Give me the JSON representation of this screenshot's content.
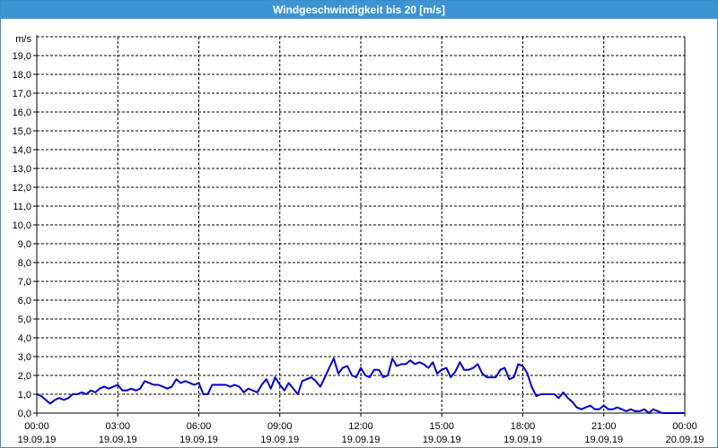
{
  "window": {
    "title": "Windgeschwindigkeit bis 20 [m/s]"
  },
  "chart_data": {
    "type": "line",
    "title": "Windgeschwindigkeit bis 20 [m/s]",
    "ylabel": "m/s",
    "ylim": [
      0,
      20
    ],
    "xlim_hours": [
      0,
      24
    ],
    "yticks": [
      "0,0",
      "1,0",
      "2,0",
      "3,0",
      "4,0",
      "5,0",
      "6,0",
      "7,0",
      "8,0",
      "9,0",
      "10,0",
      "11,0",
      "12,0",
      "13,0",
      "14,0",
      "15,0",
      "16,0",
      "17,0",
      "18,0",
      "19,0"
    ],
    "xticks": [
      {
        "time": "00:00",
        "date": "19.09.19"
      },
      {
        "time": "03:00",
        "date": "19.09.19"
      },
      {
        "time": "06:00",
        "date": "19.09.19"
      },
      {
        "time": "09:00",
        "date": "19.09.19"
      },
      {
        "time": "12:00",
        "date": "19.09.19"
      },
      {
        "time": "15:00",
        "date": "19.09.19"
      },
      {
        "time": "18:00",
        "date": "19.09.19"
      },
      {
        "time": "21:00",
        "date": "19.09.19"
      },
      {
        "time": "00:00",
        "date": "20.09.19"
      }
    ],
    "grid": true,
    "line_color": "#0000cc",
    "series": [
      {
        "x": [
          0,
          0.17,
          0.33,
          0.5,
          0.67,
          0.83,
          1.0,
          1.17,
          1.33,
          1.5,
          1.67,
          1.83,
          2.0,
          2.17,
          2.33,
          2.5,
          2.67,
          2.83,
          3.0,
          3.17,
          3.33,
          3.5,
          3.67,
          3.83,
          4.0,
          4.17,
          4.33,
          4.5,
          4.67,
          4.83,
          5.0,
          5.17,
          5.33,
          5.5,
          5.67,
          5.83,
          6.0,
          6.17,
          6.33,
          6.5,
          6.67,
          6.83,
          7.0,
          7.17,
          7.33,
          7.5,
          7.67,
          7.83,
          8.0,
          8.17,
          8.33,
          8.5,
          8.67,
          8.83,
          9.0,
          9.17,
          9.33,
          9.5,
          9.67,
          9.83,
          10.0,
          10.17,
          10.33,
          10.5,
          10.67,
          10.83,
          11.0,
          11.17,
          11.33,
          11.5,
          11.67,
          11.83,
          12.0,
          12.17,
          12.33,
          12.5,
          12.67,
          12.83,
          13.0,
          13.17,
          13.33,
          13.5,
          13.67,
          13.83,
          14.0,
          14.17,
          14.33,
          14.5,
          14.67,
          14.83,
          15.0,
          15.17,
          15.33,
          15.5,
          15.67,
          15.83,
          16.0,
          16.17,
          16.33,
          16.5,
          16.67,
          16.83,
          17.0,
          17.17,
          17.33,
          17.5,
          17.67,
          17.83,
          18.0,
          18.17,
          18.33,
          18.5,
          18.67,
          18.83,
          19.0,
          19.17,
          19.33,
          19.5,
          19.67,
          19.83,
          20.0,
          20.17,
          20.33,
          20.5,
          20.67,
          20.83,
          21.0,
          21.17,
          21.33,
          21.5,
          21.67,
          21.83,
          22.0,
          22.17,
          22.33,
          22.5,
          22.67,
          22.83,
          23.0,
          23.17,
          23.33,
          23.5,
          23.67,
          23.83,
          24.0
        ],
        "y": [
          1.0,
          0.9,
          0.7,
          0.5,
          0.7,
          0.8,
          0.7,
          0.8,
          1.0,
          1.0,
          1.1,
          1.0,
          1.2,
          1.1,
          1.3,
          1.4,
          1.3,
          1.4,
          1.5,
          1.2,
          1.2,
          1.3,
          1.2,
          1.3,
          1.7,
          1.6,
          1.5,
          1.5,
          1.4,
          1.3,
          1.4,
          1.8,
          1.6,
          1.7,
          1.6,
          1.5,
          1.6,
          1.0,
          1.0,
          1.5,
          1.5,
          1.5,
          1.5,
          1.4,
          1.5,
          1.4,
          1.1,
          1.3,
          1.2,
          1.1,
          1.5,
          1.8,
          1.3,
          1.9,
          1.5,
          1.2,
          1.6,
          1.3,
          1.0,
          1.7,
          1.8,
          1.9,
          1.7,
          1.4,
          1.9,
          2.4,
          2.9,
          2.1,
          2.4,
          2.5,
          2.0,
          1.9,
          2.4,
          2.0,
          1.9,
          2.3,
          2.3,
          1.9,
          2.0,
          2.9,
          2.5,
          2.6,
          2.6,
          2.8,
          2.6,
          2.7,
          2.6,
          2.4,
          2.7,
          2.1,
          2.3,
          2.4,
          1.9,
          2.2,
          2.7,
          2.3,
          2.3,
          2.4,
          2.6,
          2.1,
          1.9,
          1.9,
          1.9,
          2.3,
          2.4,
          1.8,
          1.9,
          2.6,
          2.5,
          2.1,
          1.4,
          0.9,
          1.0,
          1.0,
          1.0,
          1.0,
          0.8,
          1.1,
          0.8,
          0.6,
          0.3,
          0.2,
          0.3,
          0.4,
          0.2,
          0.2,
          0.4,
          0.2,
          0.2,
          0.3,
          0.2,
          0.1,
          0.2,
          0.1,
          0.1,
          0.2,
          0.0,
          0.2,
          0.1,
          0.0,
          0.0,
          0.0,
          0.0,
          0.0,
          0.0
        ]
      }
    ]
  }
}
